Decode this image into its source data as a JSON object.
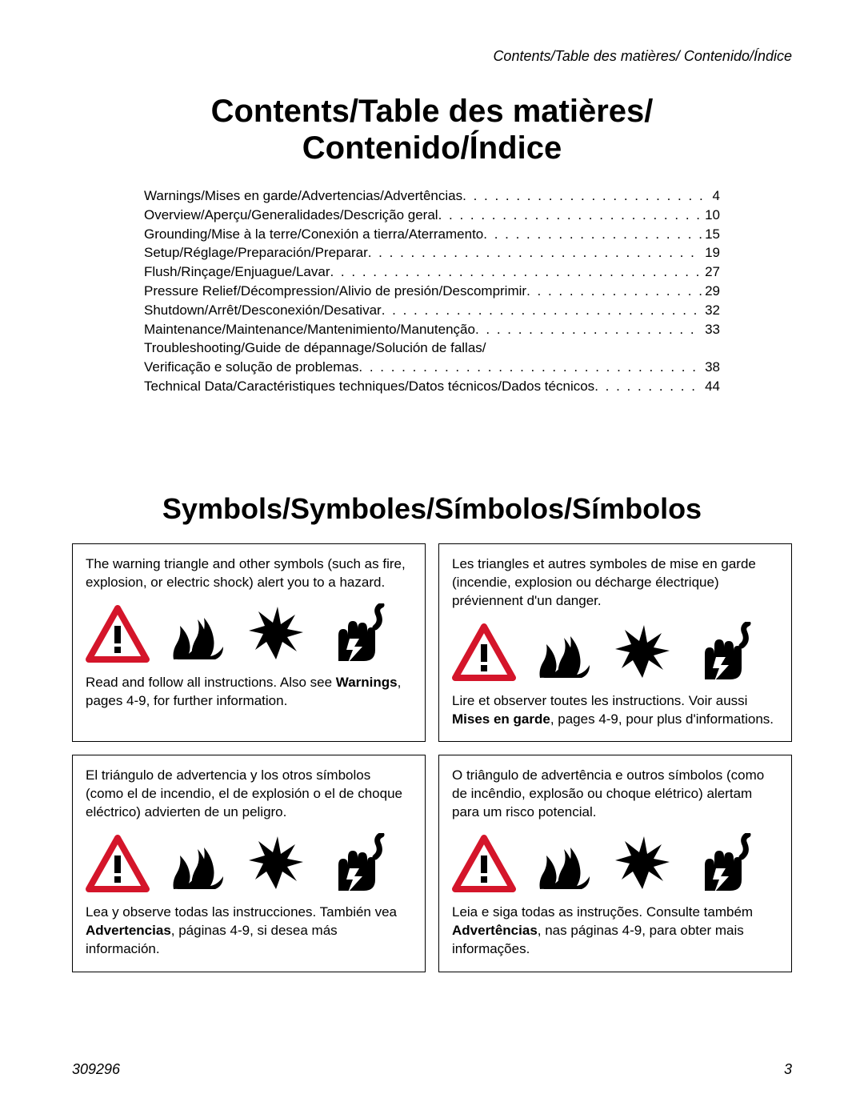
{
  "running_head": "Contents/Table des matières/ Contenido/Índice",
  "title_line1": "Contents/Table des matières/",
  "title_line2": "Contenido/Índice",
  "toc": [
    {
      "label": "Warnings/Mises en garde/Advertencias/Advertências",
      "page": "4"
    },
    {
      "label": "Overview/Aperçu/Generalidades/Descrição geral",
      "page": "10"
    },
    {
      "label": "Grounding/Mise à la terre/Conexión a tierra/Aterramento",
      "page": "15"
    },
    {
      "label": "Setup/Réglage/Preparación/Preparar",
      "page": "19"
    },
    {
      "label": "Flush/Rinçage/Enjuague/Lavar",
      "page": "27"
    },
    {
      "label": "Pressure Relief/Décompression/Alivio de presión/Descomprimir",
      "page": "29"
    },
    {
      "label": "Shutdown/Arrêt/Desconexión/Desativar",
      "page": "32"
    },
    {
      "label": "Maintenance/Maintenance/Mantenimiento/Manutenção",
      "page": "33"
    },
    {
      "label": "Troubleshooting/Guide de dépannage/Solución de fallas/",
      "page": ""
    },
    {
      "label": "Verificação e solução de problemas",
      "page": "38"
    },
    {
      "label": "Technical Data/Caractéristiques techniques/Datos técnicos/Dados técnicos",
      "page": "44"
    }
  ],
  "symbols_heading": "Symbols/Symboles/Símbolos/Símbolos",
  "cells": {
    "en": {
      "intro": "The warning triangle and other symbols (such as fire, explosion, or electric shock) alert you to a hazard.",
      "follow_pre": "Read and follow all instructions. Also see ",
      "follow_bold": "Warnings",
      "follow_post": ", pages 4-9, for further information."
    },
    "fr": {
      "intro": "Les triangles et autres symboles de mise en garde (incendie, explosion ou décharge électrique) préviennent d'un danger.",
      "follow_pre": "Lire et observer toutes les instructions. Voir aussi ",
      "follow_bold": "Mises en garde",
      "follow_post": ", pages 4-9, pour plus d'informations."
    },
    "es": {
      "intro": "El triángulo de advertencia y los otros símbolos (como el de incendio, el de explosión o el de choque eléctrico) advierten de un peligro.",
      "follow_pre": "Lea y observe todas las instrucciones. También vea ",
      "follow_bold": "Advertencias",
      "follow_post": ", páginas 4-9, si desea más información."
    },
    "pt": {
      "intro": "O triângulo de advertência e outros símbolos (como de incêndio, explosão ou choque elétrico) alertam para um risco potencial.",
      "follow_pre": "Leia e siga todas as instruções. Consulte também ",
      "follow_bold": "Advertências",
      "follow_post": ", nas páginas 4-9, para obter mais informações."
    }
  },
  "colors": {
    "triangle_stroke": "#d4152a",
    "icon_fill": "#000000",
    "text": "#000000",
    "background": "#ffffff"
  },
  "footer": {
    "doc_number": "309296",
    "page_number": "3"
  }
}
